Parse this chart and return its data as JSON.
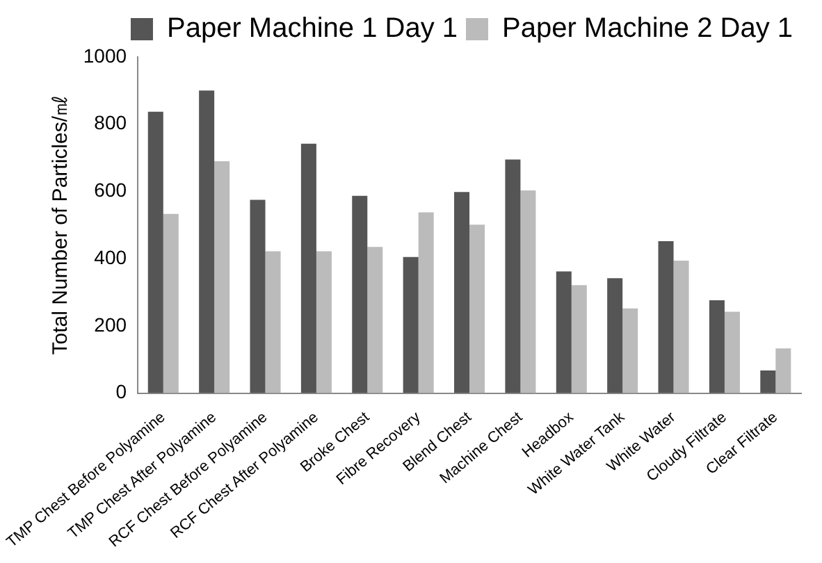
{
  "chart_data": {
    "type": "bar",
    "ylabel": "Total Number of Particles/㎖",
    "categories": [
      "TMP Chest Before Polyamine",
      "TMP Chest After Polyamine",
      "RCF Chest Before Polyamine",
      "RCF Chest After Polyamine",
      "Broke Chest",
      "Fibre Recovery",
      "Blend Chest",
      "Machine Chest",
      "Headbox",
      "White Water Tank",
      "White Water",
      "Cloudy Filtrate",
      "Clear Filtrate"
    ],
    "series": [
      {
        "name": "Paper Machine 1 Day 1",
        "color": "#555555",
        "values": [
          837,
          900,
          575,
          742,
          587,
          405,
          598,
          695,
          362,
          342,
          452,
          276,
          67
        ]
      },
      {
        "name": "Paper Machine 2 Day 1",
        "color": "#bbbbbb",
        "values": [
          533,
          690,
          422,
          422,
          435,
          538,
          501,
          603,
          321,
          252,
          394,
          242,
          133
        ]
      }
    ],
    "ylim": [
      0,
      1000
    ],
    "yticks": [
      0,
      200,
      400,
      600,
      800,
      1000
    ],
    "grid": false,
    "legend": "top right"
  }
}
